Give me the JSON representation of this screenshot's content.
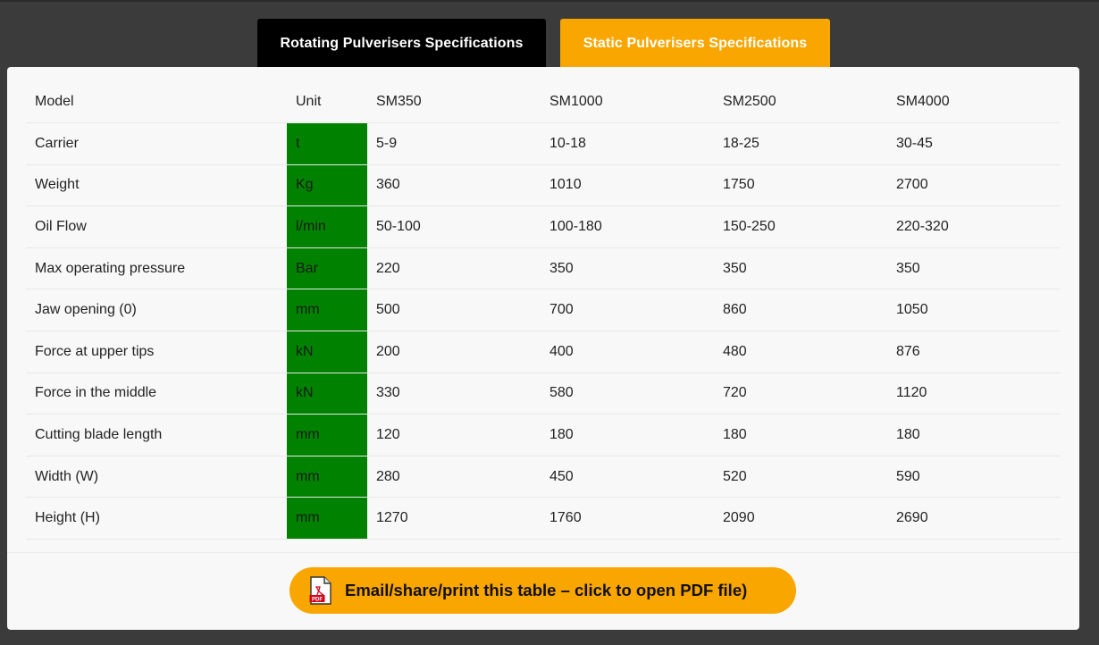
{
  "tabs": {
    "rotating": "Rotating Pulverisers Specifications",
    "static": "Static Pulverisers Specifications"
  },
  "table": {
    "headers": [
      "Model",
      "Unit",
      "SM350",
      "SM1000",
      "SM2500",
      "SM4000"
    ],
    "rows": [
      {
        "label": "Carrier",
        "unit": "t",
        "values": [
          "5-9",
          "10-18",
          "18-25",
          "30-45"
        ]
      },
      {
        "label": "Weight",
        "unit": "Kg",
        "values": [
          "360",
          "1010",
          "1750",
          "2700"
        ]
      },
      {
        "label": "Oil Flow",
        "unit": "l/min",
        "values": [
          "50-100",
          "100-180",
          "150-250",
          "220-320"
        ]
      },
      {
        "label": "Max operating pressure",
        "unit": "Bar",
        "values": [
          "220",
          "350",
          "350",
          "350"
        ]
      },
      {
        "label": "Jaw opening (0)",
        "unit": "mm",
        "values": [
          "500",
          "700",
          "860",
          "1050"
        ]
      },
      {
        "label": "Force at upper tips",
        "unit": "kN",
        "values": [
          "200",
          "400",
          "480",
          "876"
        ]
      },
      {
        "label": "Force in the middle",
        "unit": "kN",
        "values": [
          "330",
          "580",
          "720",
          "1120"
        ]
      },
      {
        "label": "Cutting blade length",
        "unit": "mm",
        "values": [
          "120",
          "180",
          "180",
          "180"
        ]
      },
      {
        "label": "Width (W)",
        "unit": "mm",
        "values": [
          "280",
          "450",
          "520",
          "590"
        ]
      },
      {
        "label": "Height (H)",
        "unit": "mm",
        "values": [
          "1270",
          "1760",
          "2090",
          "2690"
        ]
      }
    ]
  },
  "pdf_button": {
    "label": "Email/share/print this table – click to open PDF file)",
    "icon": "pdf-file-icon",
    "icon_text": "PDF"
  },
  "colors": {
    "background": "#3b3b3b",
    "accent_orange": "#f9a600",
    "unit_green": "#008200",
    "active_tab": "#000000",
    "panel": "#f8f8f8"
  }
}
